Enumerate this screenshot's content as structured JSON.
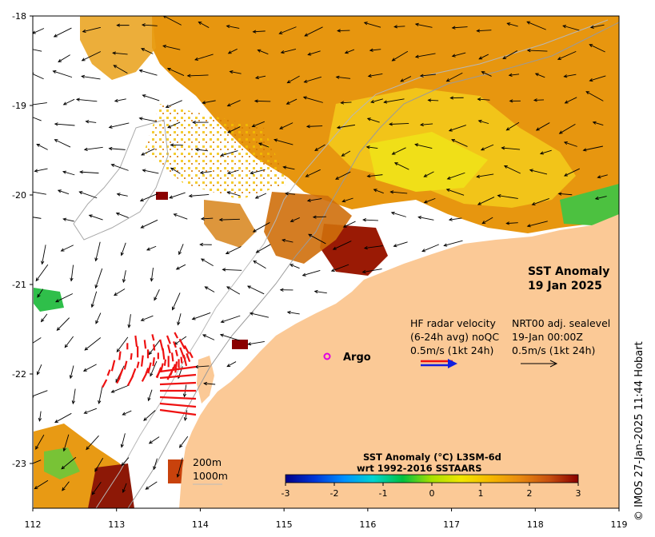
{
  "title": {
    "line1": "SST Anomaly",
    "line2": "19 Jan 2025"
  },
  "axes": {
    "x_ticks": [
      "112",
      "113",
      "114",
      "115",
      "116",
      "117",
      "118",
      "119"
    ],
    "y_ticks": [
      "-18",
      "-19",
      "-20",
      "-21",
      "-22",
      "-23"
    ],
    "lon_range": [
      112,
      119
    ],
    "lat_range": [
      -23.5,
      -18
    ]
  },
  "legend": {
    "argo_label": "Argo",
    "hf_line1": "HF radar velocity",
    "hf_line2": "(6-24h avg) noQC",
    "hf_line3": "0.5m/s (1kt 24h)",
    "nrt_line1": "NRT00 adj. sealevel",
    "nrt_line2": "19-Jan 00:00Z",
    "nrt_line3": "0.5m/s (1kt 24h)",
    "isobath_200": "200m",
    "isobath_1000": "1000m",
    "argo_color": "#e000e0",
    "hf_color": "#ee1111",
    "nrt_color": "#000000"
  },
  "colorbar": {
    "title_line1": "SST Anomaly (°C) L3SM-6d",
    "title_line2": "wrt 1992-2016 SSTAARS",
    "ticks": [
      "-3",
      "-2",
      "-1",
      "0",
      "1",
      "2",
      "3"
    ],
    "range": [
      -3,
      3
    ],
    "stops": [
      "#00008a",
      "#0036d8",
      "#0090ff",
      "#00d4d0",
      "#00c040",
      "#a8e000",
      "#f0e600",
      "#f5b800",
      "#e88a10",
      "#c85010",
      "#8a0000"
    ]
  },
  "land_color": "#fbc996",
  "credit": "© IMOS 27-Jan-2025 11:44 Hobart"
}
